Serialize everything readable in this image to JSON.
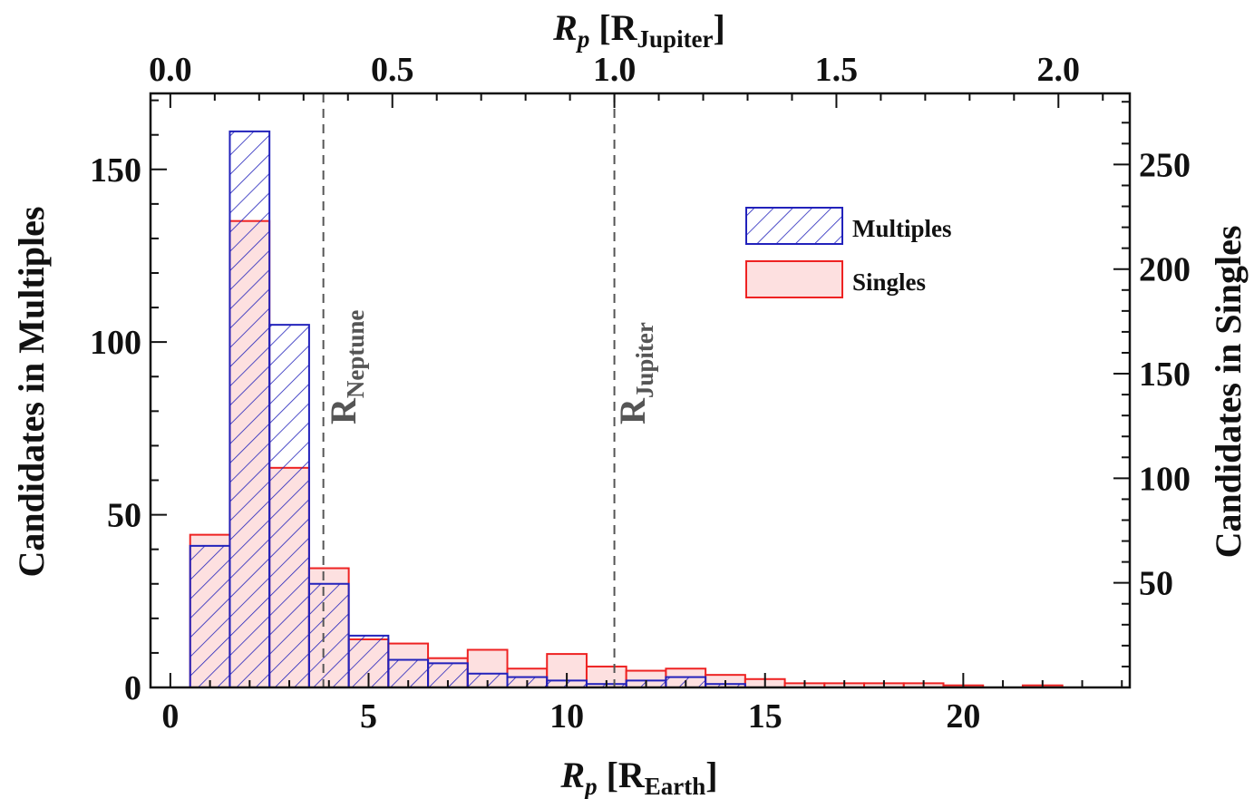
{
  "chart_data": {
    "type": "bar",
    "bin_width": 1,
    "bin_starts": [
      0.5,
      1.5,
      2.5,
      3.5,
      4.5,
      5.5,
      6.5,
      7.5,
      8.5,
      9.5,
      10.5,
      11.5,
      12.5,
      13.5,
      14.5,
      15.5,
      16.5,
      17.5,
      18.5,
      19.5,
      20.5,
      21.5
    ],
    "series": [
      {
        "name": "Multiples",
        "axis": "left",
        "fill": "hatched",
        "color": "#2222bb",
        "values": [
          41,
          161,
          105,
          30,
          15,
          8,
          7,
          4,
          3,
          2,
          1,
          2,
          3,
          1,
          0,
          0,
          0,
          0,
          0,
          0,
          0,
          0
        ]
      },
      {
        "name": "Singles",
        "axis": "right",
        "fill": "solid",
        "color": "#ee2222",
        "fill_color": "#fde0e0",
        "values": [
          73,
          223,
          105,
          57,
          23,
          21,
          14,
          18,
          9,
          16,
          10,
          8,
          9,
          6,
          4,
          2,
          2,
          2,
          2,
          1,
          0,
          1
        ]
      }
    ],
    "x_axis": {
      "ticks": [
        0,
        5,
        10,
        15,
        20
      ],
      "range": [
        -0.5,
        24.2
      ],
      "title": "R",
      "title_sub": "p",
      "title_unit_prefix": " [R",
      "title_unit_sub": "Earth",
      "title_unit_suffix": "]"
    },
    "top_axis": {
      "ticks": [
        "0.0",
        "0.5",
        "1.0",
        "1.5",
        "2.0"
      ],
      "tick_values": [
        0,
        0.5,
        1.0,
        1.5,
        2.0
      ],
      "range_note": "R_Jupiter scale",
      "title": "R",
      "title_sub": "p",
      "title_unit_prefix": " [R",
      "title_unit_sub": "Jupiter",
      "title_unit_suffix": "]"
    },
    "left_axis": {
      "ticks": [
        0,
        50,
        100,
        150
      ],
      "range": [
        0,
        172
      ],
      "title": "Candidates in Multiples"
    },
    "right_axis": {
      "ticks": [
        50,
        100,
        150,
        200,
        250
      ],
      "range": [
        0,
        284
      ],
      "title": "Candidates in Singles"
    },
    "reference_lines": [
      {
        "x": 3.86,
        "label": "R",
        "label_sub": "Neptune"
      },
      {
        "x": 11.2,
        "label": "R",
        "label_sub": "Jupiter"
      }
    ],
    "legend": {
      "placement": "top-right",
      "entries": [
        {
          "label": "Multiples",
          "style": "hatched"
        },
        {
          "label": "Singles",
          "style": "solid"
        }
      ]
    }
  }
}
